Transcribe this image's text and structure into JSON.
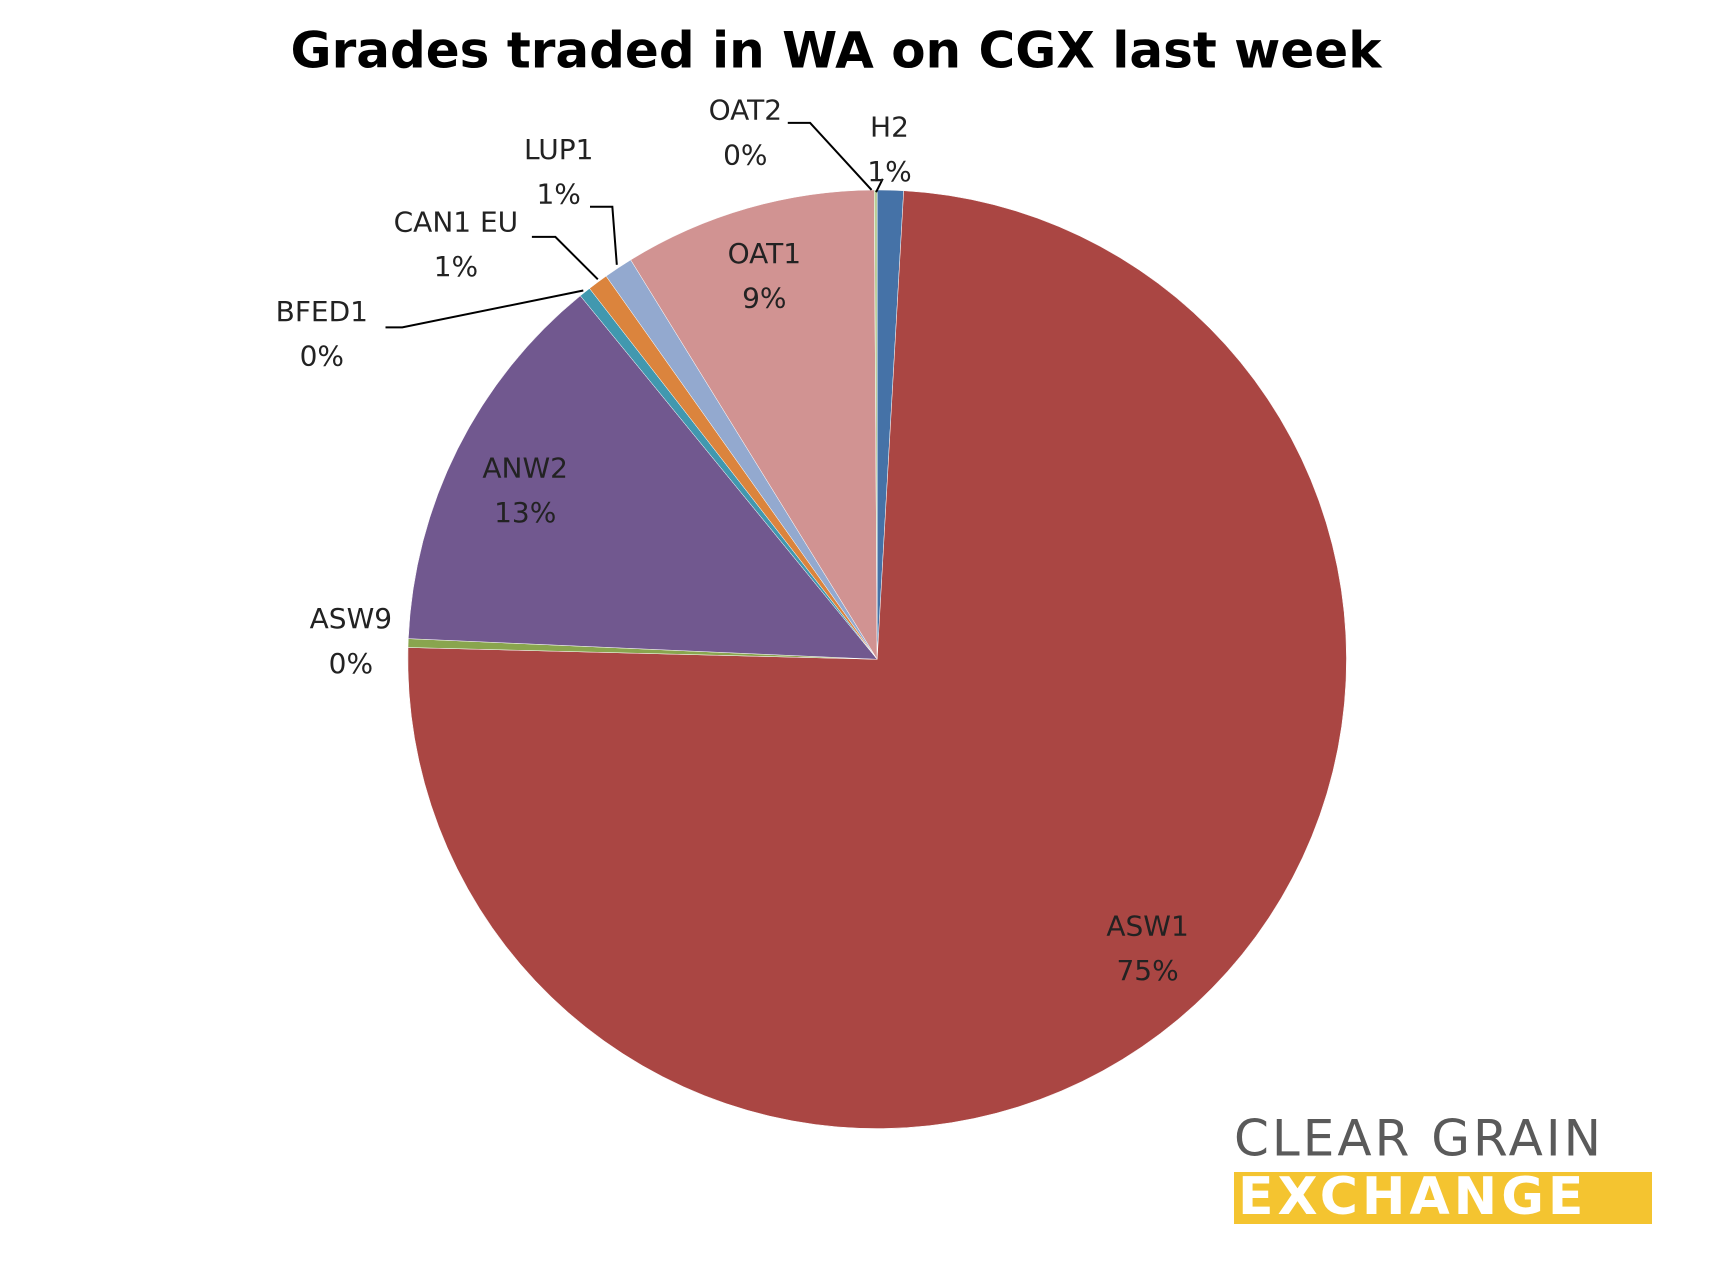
{
  "chart_data": {
    "type": "pie",
    "title": "Grades traded in WA on CGX last week",
    "categories": [
      "H2",
      "ASW1",
      "ASW9",
      "ANW2",
      "BFED1",
      "CAN1 EU",
      "LUP1",
      "OAT1",
      "OAT2"
    ],
    "values": [
      0.9,
      74.5,
      0.3,
      13.4,
      0.4,
      0.7,
      1.0,
      8.7,
      0.1
    ],
    "value_labels": [
      "1%",
      "75%",
      "0%",
      "13%",
      "0%",
      "1%",
      "1%",
      "9%",
      "0%"
    ],
    "colors": [
      "#4572a7",
      "#aa4643",
      "#89a54e",
      "#71588f",
      "#4198af",
      "#db843d",
      "#93a9cf",
      "#d19392",
      "#b9cd96"
    ]
  },
  "logo": {
    "line1": "CLEAR GRAIN",
    "line2": "EXCHANGE"
  }
}
